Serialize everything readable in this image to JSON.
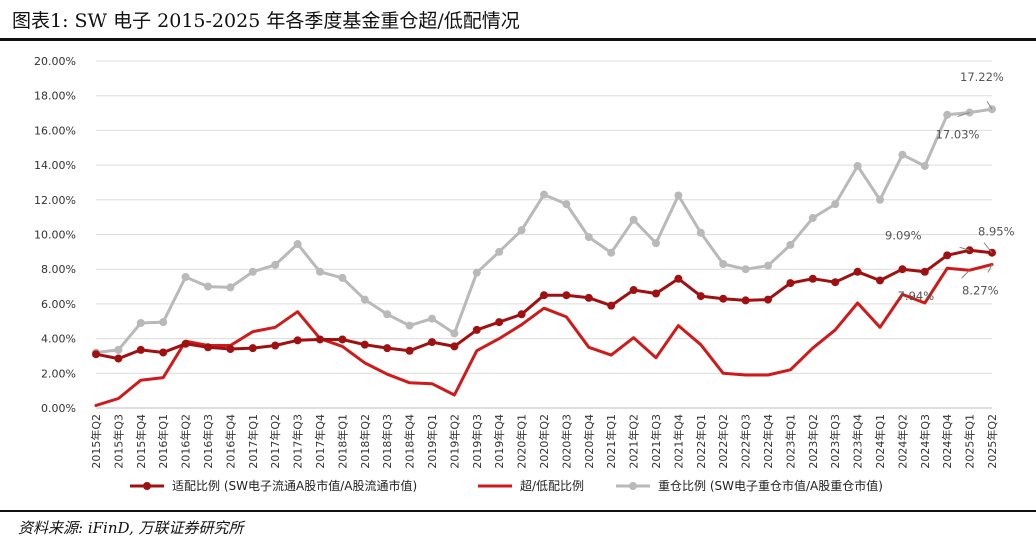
{
  "figure": {
    "title": "图表1:  SW 电子 2015-2025 年各季度基金重仓超/低配情况",
    "source": "资料来源: iFinD, 万联证券研究所"
  },
  "chart_data": {
    "type": "line",
    "x": [
      "2015年Q2",
      "2015年Q3",
      "2015年Q4",
      "2016年Q1",
      "2016年Q2",
      "2016年Q3",
      "2016年Q4",
      "2017年Q1",
      "2017年Q2",
      "2017年Q3",
      "2017年Q4",
      "2018年Q1",
      "2018年Q2",
      "2018年Q3",
      "2018年Q4",
      "2019年Q1",
      "2019年Q2",
      "2019年Q3",
      "2019年Q4",
      "2020年Q1",
      "2020年Q2",
      "2020年Q3",
      "2020年Q4",
      "2021年Q1",
      "2021年Q2",
      "2021年Q3",
      "2021年Q4",
      "2022年Q1",
      "2022年Q2",
      "2022年Q3",
      "2022年Q4",
      "2023年Q1",
      "2023年Q2",
      "2023年Q3",
      "2023年Q4",
      "2024年Q1",
      "2024年Q2",
      "2024年Q3",
      "2024年Q4",
      "2025年Q1",
      "2025年Q2"
    ],
    "ylim": [
      0,
      20
    ],
    "yticks": [
      "0.00%",
      "2.00%",
      "4.00%",
      "6.00%",
      "8.00%",
      "10.00%",
      "12.00%",
      "14.00%",
      "16.00%",
      "18.00%",
      "20.00%"
    ],
    "grid": "horizontal",
    "legend_position": "bottom",
    "series": [
      {
        "name": "适配比例 (SW电子流通A股市值/A股流通市值)",
        "color": "#a01010",
        "marker": true,
        "values": [
          3.1,
          2.85,
          3.35,
          3.2,
          3.7,
          3.5,
          3.4,
          3.45,
          3.6,
          3.9,
          3.95,
          3.95,
          3.65,
          3.45,
          3.3,
          3.8,
          3.55,
          4.5,
          4.95,
          5.4,
          6.5,
          6.5,
          6.35,
          5.9,
          6.8,
          6.6,
          7.45,
          6.45,
          6.3,
          6.2,
          6.25,
          7.2,
          7.45,
          7.25,
          7.85,
          7.35,
          8.0,
          7.85,
          8.8,
          9.09,
          8.95
        ]
      },
      {
        "name": "超/低配比例",
        "color": "#d01a1a",
        "marker": false,
        "values": [
          0.15,
          0.55,
          1.6,
          1.75,
          3.85,
          3.6,
          3.6,
          4.4,
          4.65,
          5.55,
          4.0,
          3.55,
          2.6,
          1.95,
          1.45,
          1.4,
          0.75,
          3.3,
          4.0,
          4.8,
          5.75,
          5.25,
          3.5,
          3.05,
          4.05,
          2.9,
          4.75,
          3.65,
          2.0,
          1.9,
          1.9,
          2.2,
          3.45,
          4.5,
          6.05,
          4.65,
          6.55,
          6.05,
          8.05,
          7.94,
          8.27
        ]
      },
      {
        "name": "重仓比例 (SW电子重仓市值/A股重仓市值)",
        "color": "#b9b9b9",
        "marker": true,
        "values": [
          3.2,
          3.35,
          4.9,
          4.95,
          7.55,
          7.0,
          6.95,
          7.85,
          8.25,
          9.45,
          7.85,
          7.5,
          6.25,
          5.4,
          4.75,
          5.15,
          4.3,
          7.8,
          9.0,
          10.25,
          12.3,
          11.75,
          9.85,
          8.95,
          10.85,
          9.5,
          12.25,
          10.1,
          8.3,
          8.0,
          8.2,
          9.4,
          10.95,
          11.75,
          13.95,
          12.0,
          14.6,
          13.95,
          16.9,
          17.03,
          17.22
        ]
      }
    ],
    "annotations": [
      {
        "text": "17.22%",
        "color": "#555555",
        "series": 2,
        "index": 40
      },
      {
        "text": "17.03%",
        "color": "#555555",
        "series": 2,
        "index": 39
      },
      {
        "text": "9.09%",
        "color": "#555555",
        "series": 0,
        "index": 39
      },
      {
        "text": "8.95%",
        "color": "#555555",
        "series": 0,
        "index": 40
      },
      {
        "text": "7.94%",
        "color": "#555555",
        "series": 1,
        "index": 39
      },
      {
        "text": "8.27%",
        "color": "#555555",
        "series": 1,
        "index": 40
      }
    ]
  }
}
